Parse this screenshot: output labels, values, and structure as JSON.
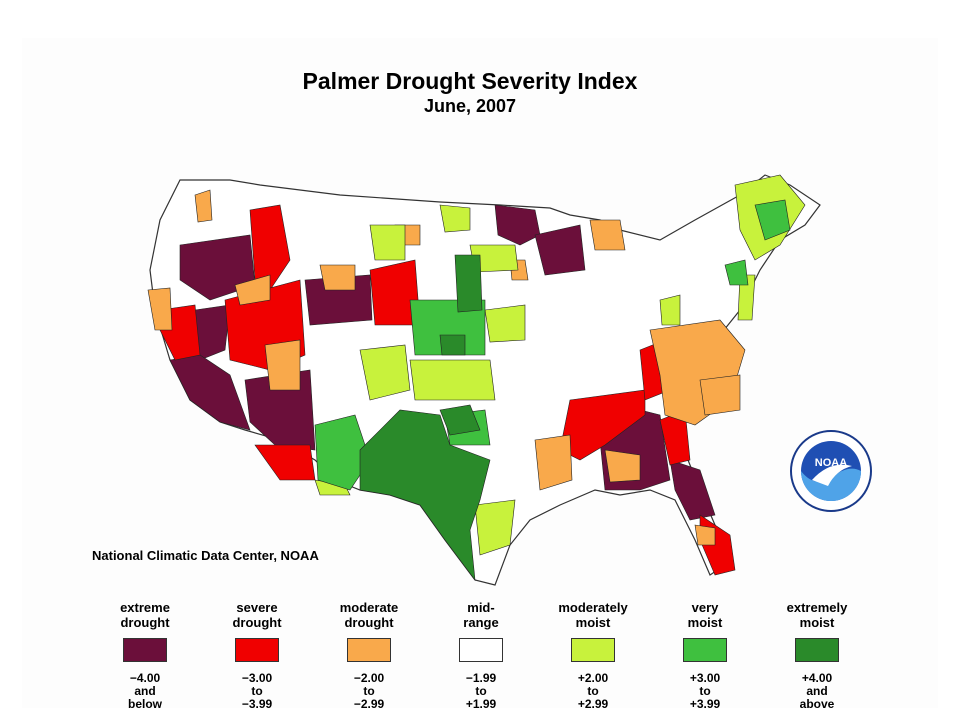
{
  "title": "Palmer Drought Severity Index",
  "subtitle": "June, 2007",
  "credit": "National Climatic Data Center, NOAA",
  "logo_text": "NOAA",
  "colors": {
    "extreme_drought": "#6b0f3a",
    "severe_drought": "#f00000",
    "moderate_drought": "#f9a94b",
    "mid_range": "#ffffff",
    "moderately_moist": "#c8f23c",
    "very_moist": "#3fc03f",
    "extremely_moist": "#2a8a2a"
  },
  "legend": [
    {
      "label": "extreme\ndrought",
      "range": "−4.00\nand\nbelow",
      "color": "#6b0f3a"
    },
    {
      "label": "severe\ndrought",
      "range": "−3.00\nto\n−3.99",
      "color": "#f00000"
    },
    {
      "label": "moderate\ndrought",
      "range": "−2.00\nto\n−2.99",
      "color": "#f9a94b"
    },
    {
      "label": "mid-\nrange",
      "range": "−1.99\nto\n+1.99",
      "color": "#ffffff"
    },
    {
      "label": "moderately\nmoist",
      "range": "+2.00\nto\n+2.99",
      "color": "#c8f23c"
    },
    {
      "label": "very\nmoist",
      "range": "+3.00\nto\n+3.99",
      "color": "#3fc03f"
    },
    {
      "label": "extremely\nmoist",
      "range": "+4.00\nand\nabove",
      "color": "#2a8a2a"
    }
  ]
}
